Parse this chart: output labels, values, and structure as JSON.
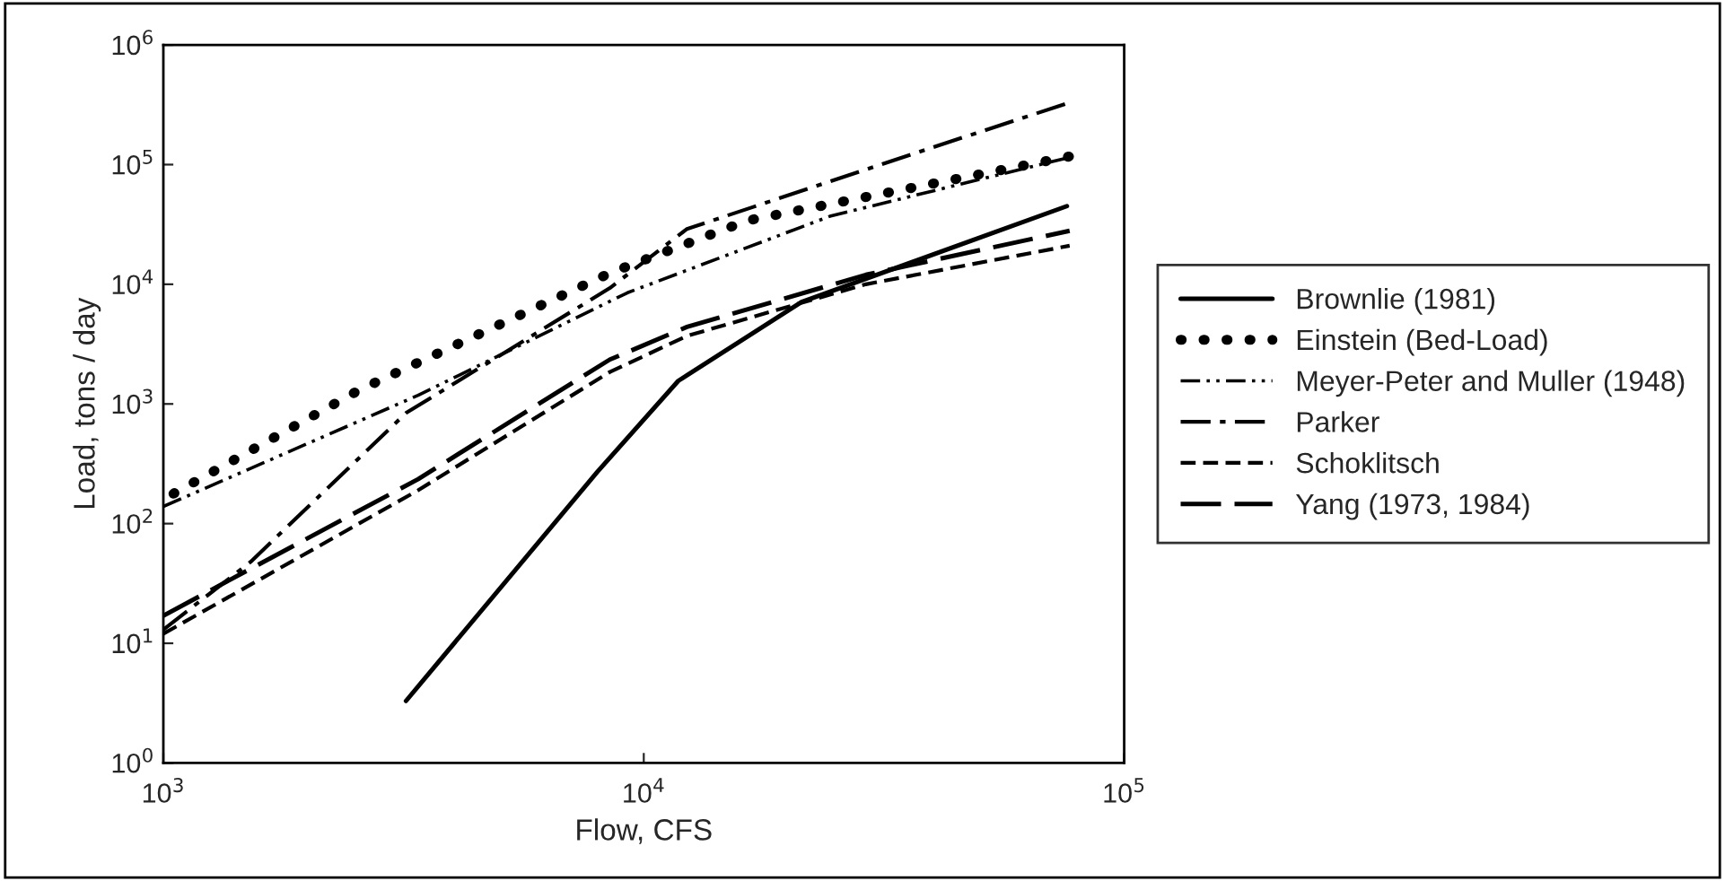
{
  "chart_data": {
    "type": "line",
    "xlabel": "Flow, CFS",
    "ylabel": "Load, tons / day",
    "log": "xy",
    "grid": false,
    "legend": "right",
    "xlim": [
      1000,
      100000
    ],
    "ylim": [
      1,
      1000000
    ],
    "xticks": [
      {
        "value": 1000,
        "label": "10$^{3}$"
      },
      {
        "value": 10000,
        "label": "10$^{4}$"
      },
      {
        "value": 100000,
        "label": "10$^{5}$"
      }
    ],
    "yticks": [
      {
        "value": 1,
        "label": "10$^{0}$"
      },
      {
        "value": 10,
        "label": "10$^{1}$"
      },
      {
        "value": 100,
        "label": "10$^{2}$"
      },
      {
        "value": 1000,
        "label": "10$^{3}$"
      },
      {
        "value": 10000,
        "label": "10$^{4}$"
      },
      {
        "value": 100000,
        "label": "10$^{5}$"
      },
      {
        "value": 1000000,
        "label": "10$^{6}$"
      }
    ],
    "series": [
      {
        "name": "Brownlie (1981)",
        "color": "#000000",
        "line_style": "solid",
        "x": [
          3200,
          8000,
          11800,
          21300,
          76000
        ],
        "values": [
          3.3,
          270,
          1560,
          7100,
          45000
        ]
      },
      {
        "name": "Einstein (Bed-Load)",
        "color": "#000000",
        "line_style": "dotted",
        "x": [
          1050,
          2550,
          8500,
          16400,
          77000
        ],
        "values": [
          178,
          1300,
          12400,
          34000,
          117000
        ]
      },
      {
        "name": "Meyer-Peter and Muller (1948)",
        "color": "#000000",
        "line_style": "dashdotdot",
        "x": [
          1000,
          3390,
          9250,
          24400,
          77000
        ],
        "values": [
          139,
          1180,
          8500,
          37000,
          115000
        ]
      },
      {
        "name": "Parker",
        "color": "#000000",
        "line_style": "dashdot",
        "x": [
          1000,
          1520,
          3200,
          8500,
          12300,
          39000,
          77000
        ],
        "values": [
          13,
          48,
          840,
          9300,
          29000,
          135000,
          330000
        ]
      },
      {
        "name": "Schoklitsch",
        "color": "#000000",
        "line_style": "dashed",
        "x": [
          1000,
          3390,
          8500,
          12300,
          29000,
          77000
        ],
        "values": [
          12,
          190,
          1850,
          3700,
          10000,
          21000
        ]
      },
      {
        "name": "Yang (1973, 1984)",
        "color": "#000000",
        "line_style": "longdash",
        "x": [
          1000,
          1520,
          3390,
          8500,
          12300,
          29000,
          77000
        ],
        "values": [
          17,
          42,
          235,
          2350,
          4400,
          12000,
          28000
        ]
      }
    ]
  }
}
